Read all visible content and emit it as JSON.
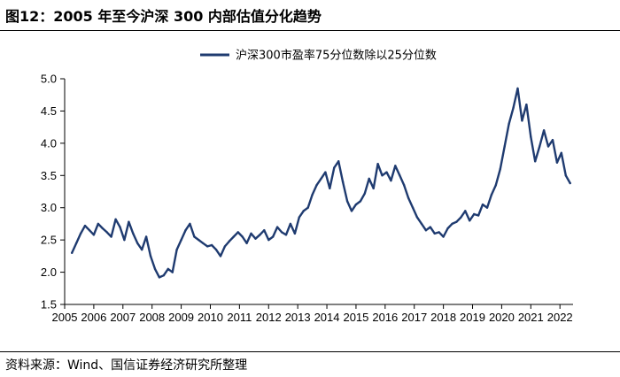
{
  "header": {
    "title": "图12：2005 年至今沪深 300 内部估值分化趋势"
  },
  "footer": {
    "source": "资料来源：Wind、国信证券经济研究所整理"
  },
  "colors": {
    "series": "#1f3b70",
    "axis": "#000000"
  },
  "chart_data": {
    "type": "line",
    "title": "图12：2005 年至今沪深 300 内部估值分化趋势",
    "xlabel": "",
    "ylabel": "",
    "xlim": [
      2005,
      2022.45
    ],
    "ylim": [
      1.5,
      5.0
    ],
    "x_ticks": [
      2005,
      2006,
      2007,
      2008,
      2009,
      2010,
      2011,
      2012,
      2013,
      2014,
      2015,
      2016,
      2017,
      2018,
      2019,
      2020,
      2021,
      2022
    ],
    "x_tick_labels": [
      "2005",
      "2006",
      "2007",
      "2008",
      "2009",
      "2010",
      "2011",
      "2012",
      "2013",
      "2014",
      "2015",
      "2016",
      "2017",
      "2018",
      "2019",
      "2020",
      "2021",
      "2022"
    ],
    "y_ticks": [
      1.5,
      2.0,
      2.5,
      3.0,
      3.5,
      4.0,
      4.5,
      5.0
    ],
    "y_tick_labels": [
      "1.5",
      "2.0",
      "2.5",
      "3.0",
      "3.5",
      "4.0",
      "4.5",
      "5.0"
    ],
    "grid": false,
    "legend_position": "top-center",
    "series": [
      {
        "name": "沪深300市盈率75分位数除以25分位数",
        "x": [
          2005.25,
          2005.4,
          2005.55,
          2005.7,
          2005.85,
          2006.0,
          2006.15,
          2006.3,
          2006.45,
          2006.6,
          2006.75,
          2006.9,
          2007.05,
          2007.2,
          2007.35,
          2007.5,
          2007.65,
          2007.8,
          2007.95,
          2008.1,
          2008.25,
          2008.4,
          2008.55,
          2008.7,
          2008.85,
          2009.0,
          2009.15,
          2009.3,
          2009.45,
          2009.6,
          2009.75,
          2009.9,
          2010.05,
          2010.2,
          2010.35,
          2010.5,
          2010.65,
          2010.8,
          2010.95,
          2011.1,
          2011.25,
          2011.4,
          2011.55,
          2011.7,
          2011.85,
          2012.0,
          2012.15,
          2012.3,
          2012.45,
          2012.6,
          2012.75,
          2012.9,
          2013.05,
          2013.2,
          2013.35,
          2013.5,
          2013.65,
          2013.8,
          2013.95,
          2014.1,
          2014.25,
          2014.4,
          2014.55,
          2014.7,
          2014.85,
          2015.0,
          2015.15,
          2015.3,
          2015.45,
          2015.6,
          2015.75,
          2015.9,
          2016.05,
          2016.2,
          2016.35,
          2016.5,
          2016.65,
          2016.8,
          2016.95,
          2017.1,
          2017.25,
          2017.4,
          2017.55,
          2017.7,
          2017.85,
          2018.0,
          2018.15,
          2018.3,
          2018.45,
          2018.6,
          2018.75,
          2018.9,
          2019.05,
          2019.2,
          2019.35,
          2019.5,
          2019.65,
          2019.8,
          2019.95,
          2020.1,
          2020.25,
          2020.4,
          2020.55,
          2020.7,
          2020.85,
          2021.0,
          2021.15,
          2021.3,
          2021.45,
          2021.6,
          2021.75,
          2021.9,
          2022.05,
          2022.2,
          2022.35
        ],
        "values": [
          2.3,
          2.45,
          2.6,
          2.72,
          2.65,
          2.58,
          2.75,
          2.68,
          2.62,
          2.55,
          2.82,
          2.7,
          2.5,
          2.78,
          2.6,
          2.45,
          2.35,
          2.55,
          2.25,
          2.05,
          1.92,
          1.95,
          2.05,
          2.0,
          2.35,
          2.5,
          2.65,
          2.75,
          2.55,
          2.5,
          2.45,
          2.4,
          2.42,
          2.35,
          2.25,
          2.4,
          2.48,
          2.55,
          2.62,
          2.55,
          2.45,
          2.6,
          2.52,
          2.58,
          2.65,
          2.5,
          2.55,
          2.7,
          2.62,
          2.58,
          2.75,
          2.6,
          2.85,
          2.95,
          3.0,
          3.2,
          3.35,
          3.45,
          3.55,
          3.3,
          3.62,
          3.72,
          3.4,
          3.1,
          2.95,
          3.05,
          3.1,
          3.22,
          3.45,
          3.3,
          3.68,
          3.5,
          3.55,
          3.42,
          3.65,
          3.5,
          3.35,
          3.15,
          3.0,
          2.85,
          2.75,
          2.65,
          2.7,
          2.6,
          2.62,
          2.55,
          2.68,
          2.75,
          2.78,
          2.85,
          2.95,
          2.8,
          2.9,
          2.88,
          3.05,
          3.0,
          3.2,
          3.35,
          3.6,
          3.95,
          4.3,
          4.55,
          4.85,
          4.35,
          4.6,
          4.1,
          3.72,
          3.95,
          4.2,
          3.95,
          4.05,
          3.7,
          3.85,
          3.5,
          3.38
        ]
      }
    ]
  }
}
